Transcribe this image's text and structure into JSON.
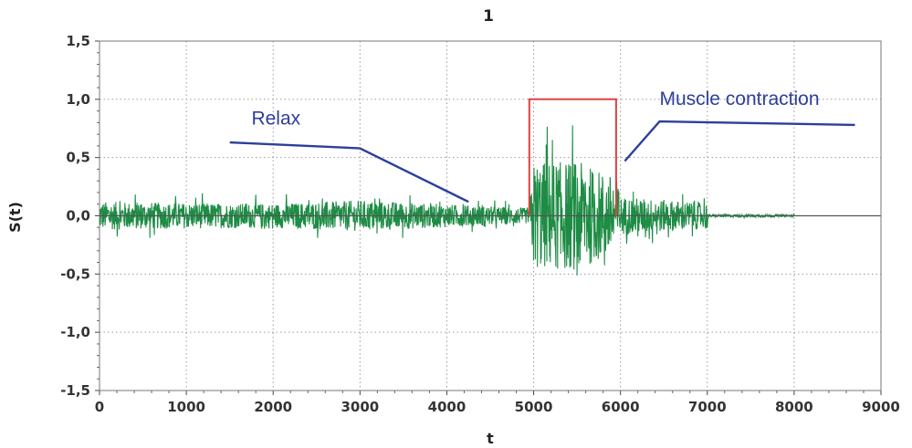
{
  "chart_data": {
    "type": "line",
    "title": "1",
    "xlabel": "t",
    "ylabel": "S(t)",
    "xlim": [
      0,
      9000
    ],
    "ylim": [
      -1.5,
      1.5
    ],
    "x_ticks": [
      "0",
      "1000",
      "2000",
      "3000",
      "4000",
      "5000",
      "6000",
      "7000",
      "8000",
      "9000"
    ],
    "y_ticks": [
      "-1,5",
      "-1,0",
      "-0,5",
      "0,0",
      "0,5",
      "1,0",
      "1,5"
    ],
    "grid": true,
    "series": [
      {
        "color": "#1e8c45",
        "x_range": [
          0,
          8000
        ],
        "envelope": [
          {
            "x": 0,
            "amp": 0.22
          },
          {
            "x": 1000,
            "amp": 0.2
          },
          {
            "x": 2000,
            "amp": 0.19
          },
          {
            "x": 3000,
            "amp": 0.24
          },
          {
            "x": 4000,
            "amp": 0.18
          },
          {
            "x": 4950,
            "amp": 0.12
          },
          {
            "x": 5000,
            "amp": 0.85
          },
          {
            "x": 5500,
            "amp": 0.85
          },
          {
            "x": 5950,
            "amp": 0.6
          },
          {
            "x": 6000,
            "amp": 0.3
          },
          {
            "x": 7000,
            "amp": 0.2
          },
          {
            "x": 7010,
            "amp": 0.02
          },
          {
            "x": 8000,
            "amp": 0.02
          }
        ]
      },
      {
        "color": "#e04040",
        "x": [
          4950,
          4950,
          5950,
          5950
        ],
        "y": [
          0,
          1.0,
          1.0,
          0
        ]
      }
    ],
    "annotations": [
      {
        "text": "Relax",
        "color": "#2c3f9a",
        "label_at": [
          1750,
          0.83
        ],
        "line_x": [
          1500,
          3000,
          4250
        ],
        "line_y": [
          0.63,
          0.58,
          0.12
        ]
      },
      {
        "text": "Muscle contraction",
        "color": "#2c3f9a",
        "label_at": [
          6450,
          1.0
        ],
        "line_x": [
          8700,
          6450,
          6050
        ],
        "line_y": [
          0.78,
          0.81,
          0.47
        ]
      }
    ]
  }
}
